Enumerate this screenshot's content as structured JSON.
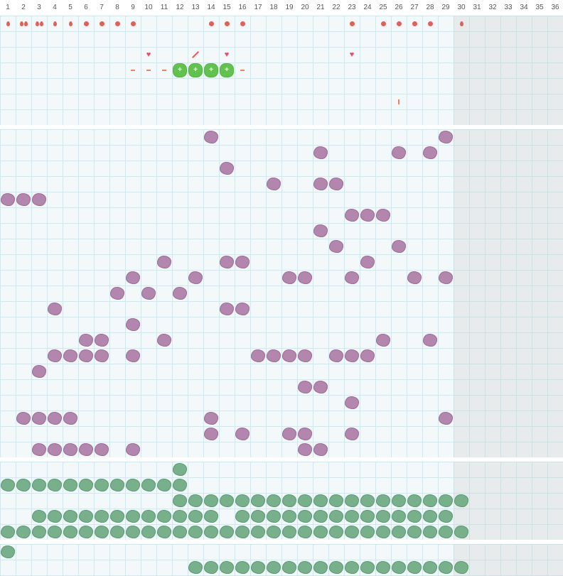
{
  "day_labels": [
    "1",
    "2",
    "3",
    "4",
    "5",
    "6",
    "7",
    "8",
    "9",
    "10",
    "11",
    "12",
    "13",
    "14",
    "15",
    "16",
    "17",
    "18",
    "19",
    "20",
    "21",
    "22",
    "23",
    "24",
    "25",
    "26",
    "27",
    "28",
    "29",
    "30",
    "31",
    "32",
    "33",
    "34",
    "35",
    "36"
  ],
  "current_day": 29,
  "colors": {
    "purple": "#b286ad",
    "green": "#77b08b",
    "red": "#e0605a",
    "pill": "#63c24f",
    "grid": "#d4e7ec"
  },
  "icons": {
    "drop": "drop-icon",
    "dot": "dot-icon",
    "dash": "dash-icon",
    "heart": "heart-icon",
    "pill": "pill-icon",
    "pen": "pen-icon",
    "tick": "tick-icon"
  },
  "symptom_events": [
    {
      "day": 1,
      "row": 1,
      "icon": "drop"
    },
    {
      "day": 2,
      "row": 1,
      "icon": "drop"
    },
    {
      "day": 2,
      "row": 1,
      "icon": "drop"
    },
    {
      "day": 3,
      "row": 1,
      "icon": "drop"
    },
    {
      "day": 3,
      "row": 1,
      "icon": "drop"
    },
    {
      "day": 4,
      "row": 1,
      "icon": "drop"
    },
    {
      "day": 5,
      "row": 1,
      "icon": "drop"
    },
    {
      "day": 6,
      "row": 1,
      "icon": "dot"
    },
    {
      "day": 7,
      "row": 1,
      "icon": "dot"
    },
    {
      "day": 8,
      "row": 1,
      "icon": "dot"
    },
    {
      "day": 9,
      "row": 1,
      "icon": "dot"
    },
    {
      "day": 14,
      "row": 1,
      "icon": "dot"
    },
    {
      "day": 15,
      "row": 1,
      "icon": "dot"
    },
    {
      "day": 16,
      "row": 1,
      "icon": "dot"
    },
    {
      "day": 23,
      "row": 1,
      "icon": "dot"
    },
    {
      "day": 25,
      "row": 1,
      "icon": "dot"
    },
    {
      "day": 26,
      "row": 1,
      "icon": "dot"
    },
    {
      "day": 27,
      "row": 1,
      "icon": "dot"
    },
    {
      "day": 28,
      "row": 1,
      "icon": "dot"
    },
    {
      "day": 30,
      "row": 1,
      "icon": "drop"
    },
    {
      "day": 10,
      "row": 3,
      "icon": "heart"
    },
    {
      "day": 13,
      "row": 3,
      "icon": "pen"
    },
    {
      "day": 15,
      "row": 3,
      "icon": "heart"
    },
    {
      "day": 23,
      "row": 3,
      "icon": "heart"
    },
    {
      "day": 9,
      "row": 4,
      "icon": "dash"
    },
    {
      "day": 10,
      "row": 4,
      "icon": "dash"
    },
    {
      "day": 11,
      "row": 4,
      "icon": "dash"
    },
    {
      "day": 12,
      "row": 4,
      "icon": "pill"
    },
    {
      "day": 13,
      "row": 4,
      "icon": "pill"
    },
    {
      "day": 14,
      "row": 4,
      "icon": "pill"
    },
    {
      "day": 15,
      "row": 4,
      "icon": "pill"
    },
    {
      "day": 16,
      "row": 4,
      "icon": "dash"
    },
    {
      "day": 26,
      "row": 6,
      "icon": "tick"
    }
  ],
  "pill_mark": "+",
  "purple_grid": [
    [
      14,
      29
    ],
    [
      21,
      26,
      28
    ],
    [
      15
    ],
    [
      18,
      21,
      22
    ],
    [
      1,
      2,
      3
    ],
    [
      23,
      24,
      25
    ],
    [
      21
    ],
    [
      22,
      26
    ],
    [
      11,
      15,
      16,
      24
    ],
    [
      9,
      13,
      19,
      20,
      23,
      27,
      29
    ],
    [
      8,
      10,
      12
    ],
    [
      4,
      15,
      16
    ],
    [
      9
    ],
    [
      6,
      7,
      11,
      25,
      28
    ],
    [
      4,
      5,
      6,
      7,
      9,
      17,
      18,
      19,
      20,
      22,
      23,
      24
    ],
    [
      3
    ],
    [
      20,
      21
    ],
    [
      23
    ],
    [
      2,
      3,
      4,
      5,
      14,
      29
    ],
    [
      14,
      16,
      19,
      20,
      23
    ],
    [
      3,
      4,
      5,
      6,
      7,
      9,
      20,
      21
    ]
  ],
  "green_grid_a": [
    [
      12
    ],
    [
      1,
      2,
      3,
      4,
      5,
      6,
      7,
      8,
      9,
      10,
      11,
      12
    ],
    [
      12,
      13,
      14,
      15,
      16,
      17,
      18,
      19,
      20,
      21,
      22,
      23,
      24,
      25,
      26,
      27,
      28,
      29,
      30
    ],
    [
      3,
      4,
      5,
      6,
      7,
      8,
      9,
      10,
      11,
      12,
      13,
      14,
      16,
      17,
      18,
      19,
      20,
      21,
      22,
      23,
      24,
      25,
      26,
      27,
      28,
      29
    ],
    [
      1,
      2,
      3,
      4,
      5,
      6,
      7,
      8,
      9,
      10,
      11,
      12,
      13,
      14,
      15,
      16,
      17,
      18,
      19,
      20,
      21,
      22,
      23,
      24,
      25,
      26,
      27,
      28,
      29,
      30
    ]
  ],
  "green_grid_b": [
    [
      1
    ],
    [
      13,
      14,
      15,
      16,
      17,
      18,
      19,
      20,
      21,
      22,
      23,
      24,
      25,
      26,
      27,
      28,
      29,
      30
    ]
  ]
}
